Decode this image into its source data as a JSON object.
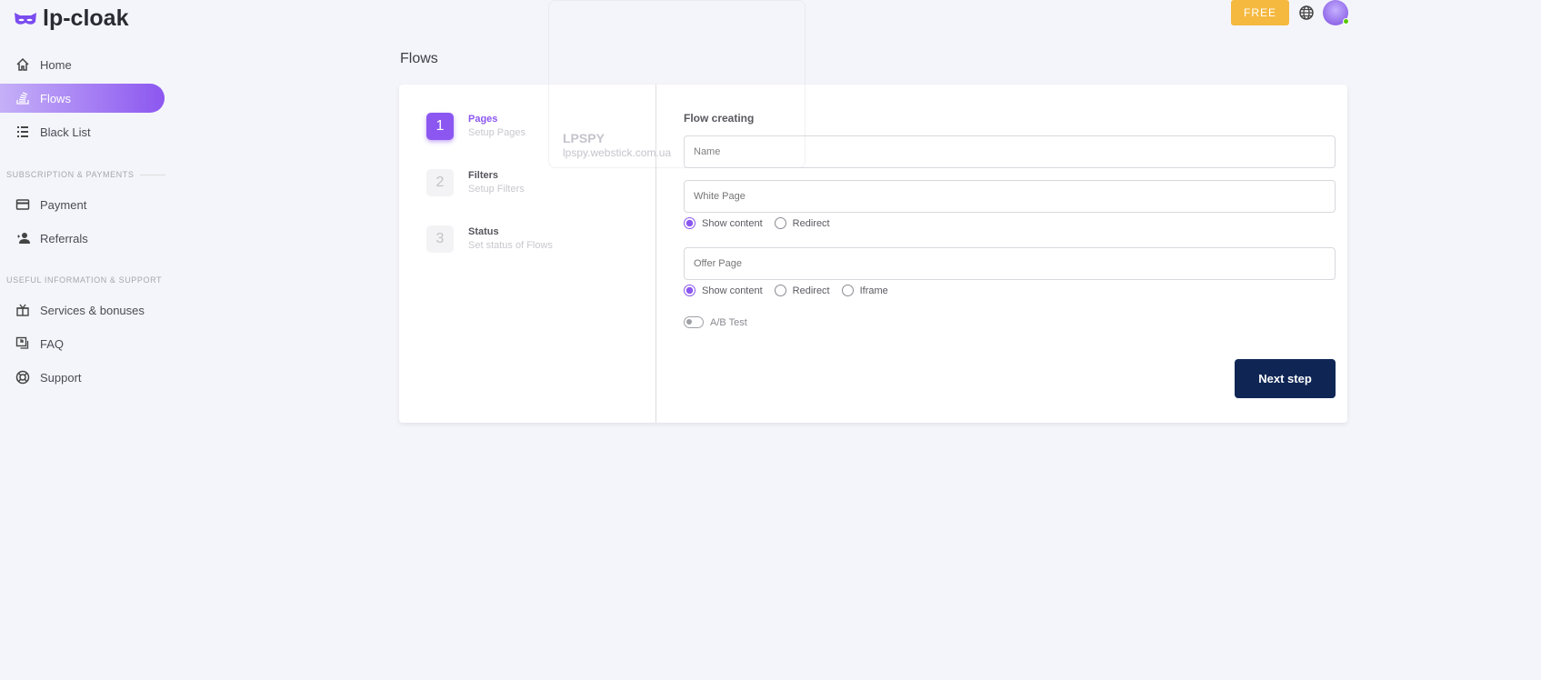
{
  "brand": {
    "name": "lp-cloak",
    "accent": "#8c57f0"
  },
  "sidebar": {
    "items": [
      {
        "label": "Home",
        "icon": "home-icon"
      },
      {
        "label": "Flows",
        "icon": "flows-icon",
        "active": true
      },
      {
        "label": "Black List",
        "icon": "list-icon"
      }
    ],
    "sections": [
      {
        "title": "SUBSCRIPTION & PAYMENTS",
        "items": [
          {
            "label": "Payment",
            "icon": "credit-card-icon"
          },
          {
            "label": "Referrals",
            "icon": "user-star-icon"
          }
        ]
      },
      {
        "title": "USEFUL INFORMATION & SUPPORT",
        "items": [
          {
            "label": "Services & bonuses",
            "icon": "gift-icon"
          },
          {
            "label": "FAQ",
            "icon": "faq-icon"
          },
          {
            "label": "Support",
            "icon": "lifebuoy-icon"
          }
        ]
      }
    ]
  },
  "header": {
    "plan_badge": "FREE",
    "plan_color": "#f5b940",
    "language_icon": "globe-icon",
    "avatar_status": "online"
  },
  "ghost_overlay": {
    "title": "LPSPY",
    "url": "lpspy.webstick.com.ua"
  },
  "page": {
    "title": "Flows"
  },
  "steps": [
    {
      "number": "1",
      "title": "Pages",
      "subtitle": "Setup Pages",
      "active": true
    },
    {
      "number": "2",
      "title": "Filters",
      "subtitle": "Setup Filters"
    },
    {
      "number": "3",
      "title": "Status",
      "subtitle": "Set status of Flows"
    }
  ],
  "form": {
    "title": "Flow creating",
    "name_placeholder": "Name",
    "white_page_placeholder": "White Page",
    "white_options": [
      "Show content",
      "Redirect"
    ],
    "white_selected": "Show content",
    "offer_page_placeholder": "Offer Page",
    "offer_options": [
      "Show content",
      "Redirect",
      "Iframe"
    ],
    "offer_selected": "Show content",
    "ab_test_label": "A/B Test",
    "ab_test_enabled": false,
    "next_label": "Next step"
  }
}
